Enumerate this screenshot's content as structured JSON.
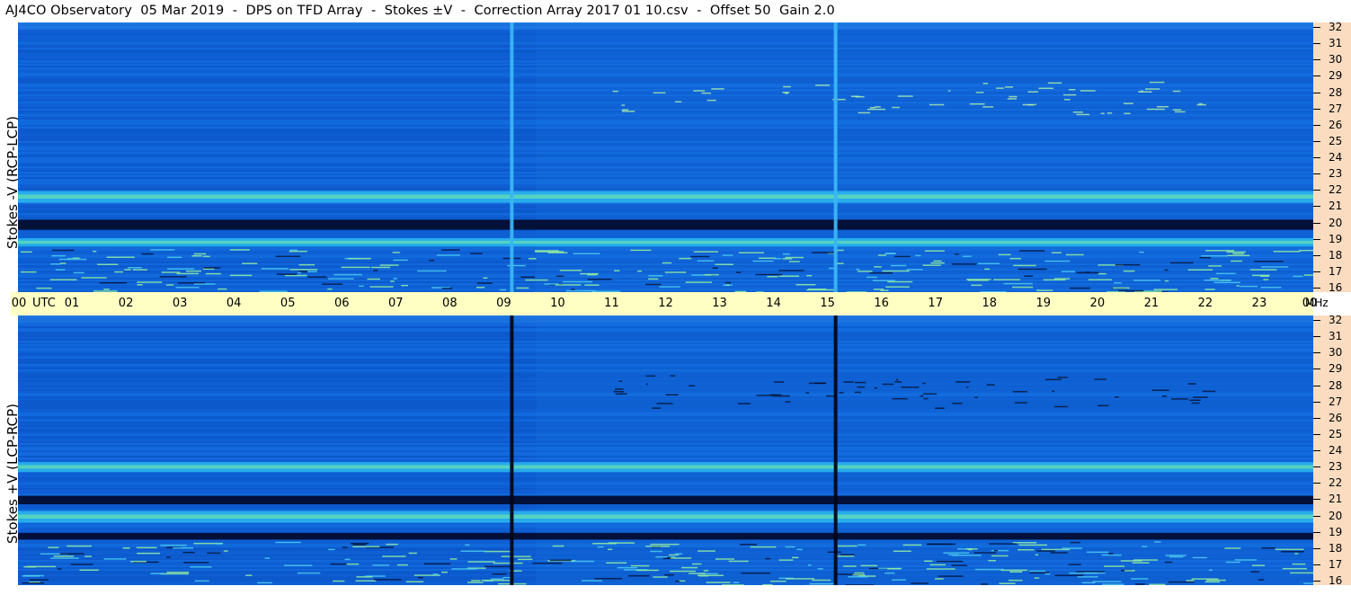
{
  "title": "AJ4CO Observatory  05 Mar 2019  -  DPS on TFD Array  -  Stokes ±V  -  Correction Array 2017 01 10.csv  -  Offset 50  Gain 2.0",
  "colors": {
    "background_panel": "#0d5fd4",
    "axis_y_bg": "#fbdcc0",
    "axis_x_bg": "#ffffc4",
    "dark_band": "#020a2c",
    "bright_band": "#7cf0a0"
  },
  "chart_data": [
    {
      "type": "heatmap",
      "name": "top-panel",
      "ylabel": "Stokes -V (RCP-LCP)",
      "x_unit": "UTC",
      "y_unit": "MHz",
      "xlim": [
        0,
        24
      ],
      "ylim": [
        16,
        32
      ],
      "x_ticks": [
        "00",
        "01",
        "02",
        "03",
        "04",
        "05",
        "06",
        "07",
        "08",
        "09",
        "10",
        "11",
        "12",
        "13",
        "14",
        "15",
        "16",
        "17",
        "18",
        "19",
        "20",
        "21",
        "22",
        "23",
        "00"
      ],
      "y_ticks": [
        "16",
        "17",
        "18",
        "19",
        "20",
        "21",
        "22",
        "23",
        "24",
        "25",
        "26",
        "27",
        "28",
        "29",
        "30",
        "31",
        "32"
      ],
      "colormap": "blue-cyan-yellow",
      "features": {
        "dark_bands_mhz": [
          [
            19.7,
            20.3
          ]
        ],
        "bright_bands_mhz": [
          [
            18.7,
            19.2
          ],
          [
            21.3,
            22.0
          ]
        ],
        "vertical_lines_utc": [
          9.15,
          15.15
        ],
        "shift_region_start_utc": 9.6
      }
    },
    {
      "type": "heatmap",
      "name": "bottom-panel",
      "ylabel": "Stokes +V (LCP-RCP)",
      "x_unit": "UTC",
      "y_unit": "MHz",
      "xlim": [
        0,
        24
      ],
      "ylim": [
        16,
        32
      ],
      "x_ticks": [
        "00",
        "01",
        "02",
        "03",
        "04",
        "05",
        "06",
        "07",
        "08",
        "09",
        "10",
        "11",
        "12",
        "13",
        "14",
        "15",
        "16",
        "17",
        "18",
        "19",
        "20",
        "21",
        "22",
        "23",
        "00"
      ],
      "y_ticks": [
        "16",
        "17",
        "18",
        "19",
        "20",
        "21",
        "22",
        "23",
        "24",
        "25",
        "26",
        "27",
        "28",
        "29",
        "30",
        "31",
        "32"
      ],
      "colormap": "blue-cyan-yellow",
      "features": {
        "dark_bands_mhz": [
          [
            18.7,
            19.1
          ],
          [
            20.8,
            21.3
          ]
        ],
        "bright_bands_mhz": [
          [
            19.7,
            20.4
          ],
          [
            22.7,
            23.3
          ]
        ],
        "vertical_lines_utc": [
          9.15,
          15.15
        ],
        "shift_region_start_utc": 9.6
      }
    }
  ],
  "x_axis": {
    "utc_label": "UTC",
    "mhz_label": "MHz"
  }
}
